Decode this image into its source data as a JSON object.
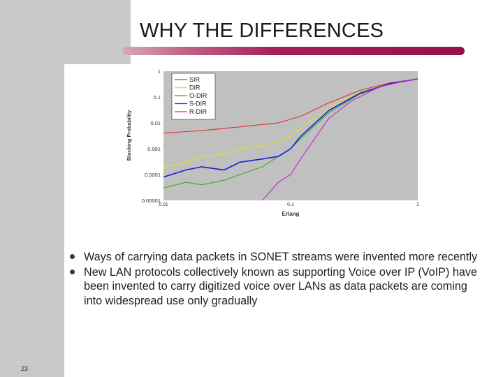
{
  "slide": {
    "title": "WHY THE DIFFERENCES",
    "number": "23",
    "bullets": [
      "Ways of carrying data packets in SONET streams were invented more recently",
      "New LAN protocols collectively known as supporting Voice over IP (VoIP)  have been invented to carry digitized voice over LANs as data packets  are coming into widespread use only gradually"
    ],
    "colors": {
      "accent": "#9a0f45",
      "sidebar": "#c9c9c9",
      "plot_bg": "#c0c0c0"
    }
  },
  "chart_data": {
    "type": "line",
    "title": "",
    "xlabel": "Erlang",
    "ylabel": "Blocking Probability",
    "x_scale": "log",
    "y_scale": "log",
    "xlim": [
      0.01,
      1
    ],
    "ylim": [
      1e-05,
      1
    ],
    "x_ticks": [
      "0.01",
      "0.1",
      "1"
    ],
    "y_ticks": [
      "1",
      "0.1",
      "0.01",
      "0.001",
      "0.0001",
      "0.00001"
    ],
    "legend_position": "top-left",
    "series": [
      {
        "name": "SIR",
        "color": "#e03030",
        "x": [
          0.01,
          0.02,
          0.04,
          0.08,
          0.12,
          0.2,
          0.35,
          0.6,
          1.0
        ],
        "y": [
          0.004,
          0.005,
          0.007,
          0.01,
          0.018,
          0.06,
          0.18,
          0.35,
          0.5
        ]
      },
      {
        "name": "DIR",
        "color": "#e8e020",
        "x": [
          0.01,
          0.015,
          0.02,
          0.03,
          0.04,
          0.06,
          0.08,
          0.1,
          0.12,
          0.2,
          0.35,
          0.6,
          1.0
        ],
        "y": [
          0.0002,
          0.0003,
          0.0005,
          0.0006,
          0.001,
          0.0013,
          0.002,
          0.003,
          0.006,
          0.04,
          0.15,
          0.33,
          0.5
        ]
      },
      {
        "name": "O-DIR",
        "color": "#28b028",
        "x": [
          0.01,
          0.015,
          0.02,
          0.03,
          0.04,
          0.06,
          0.08,
          0.1,
          0.12,
          0.2,
          0.35,
          0.6,
          1.0
        ],
        "y": [
          3e-05,
          5e-05,
          4e-05,
          6e-05,
          0.0001,
          0.0002,
          0.0005,
          0.001,
          0.0025,
          0.025,
          0.13,
          0.32,
          0.5
        ]
      },
      {
        "name": "S-DIR",
        "color": "#1a1ad8",
        "x": [
          0.01,
          0.015,
          0.02,
          0.03,
          0.04,
          0.06,
          0.08,
          0.1,
          0.12,
          0.2,
          0.35,
          0.6,
          1.0
        ],
        "y": [
          8e-05,
          0.00015,
          0.0002,
          0.00015,
          0.0003,
          0.0004,
          0.0005,
          0.001,
          0.003,
          0.03,
          0.14,
          0.33,
          0.5
        ]
      },
      {
        "name": "R-DIR",
        "color": "#d020d0",
        "x": [
          0.06,
          0.08,
          0.1,
          0.12,
          0.15,
          0.2,
          0.3,
          0.5,
          0.8,
          1.0
        ],
        "y": [
          1e-05,
          5e-05,
          0.0001,
          0.0004,
          0.002,
          0.015,
          0.07,
          0.25,
          0.42,
          0.5
        ]
      }
    ]
  }
}
